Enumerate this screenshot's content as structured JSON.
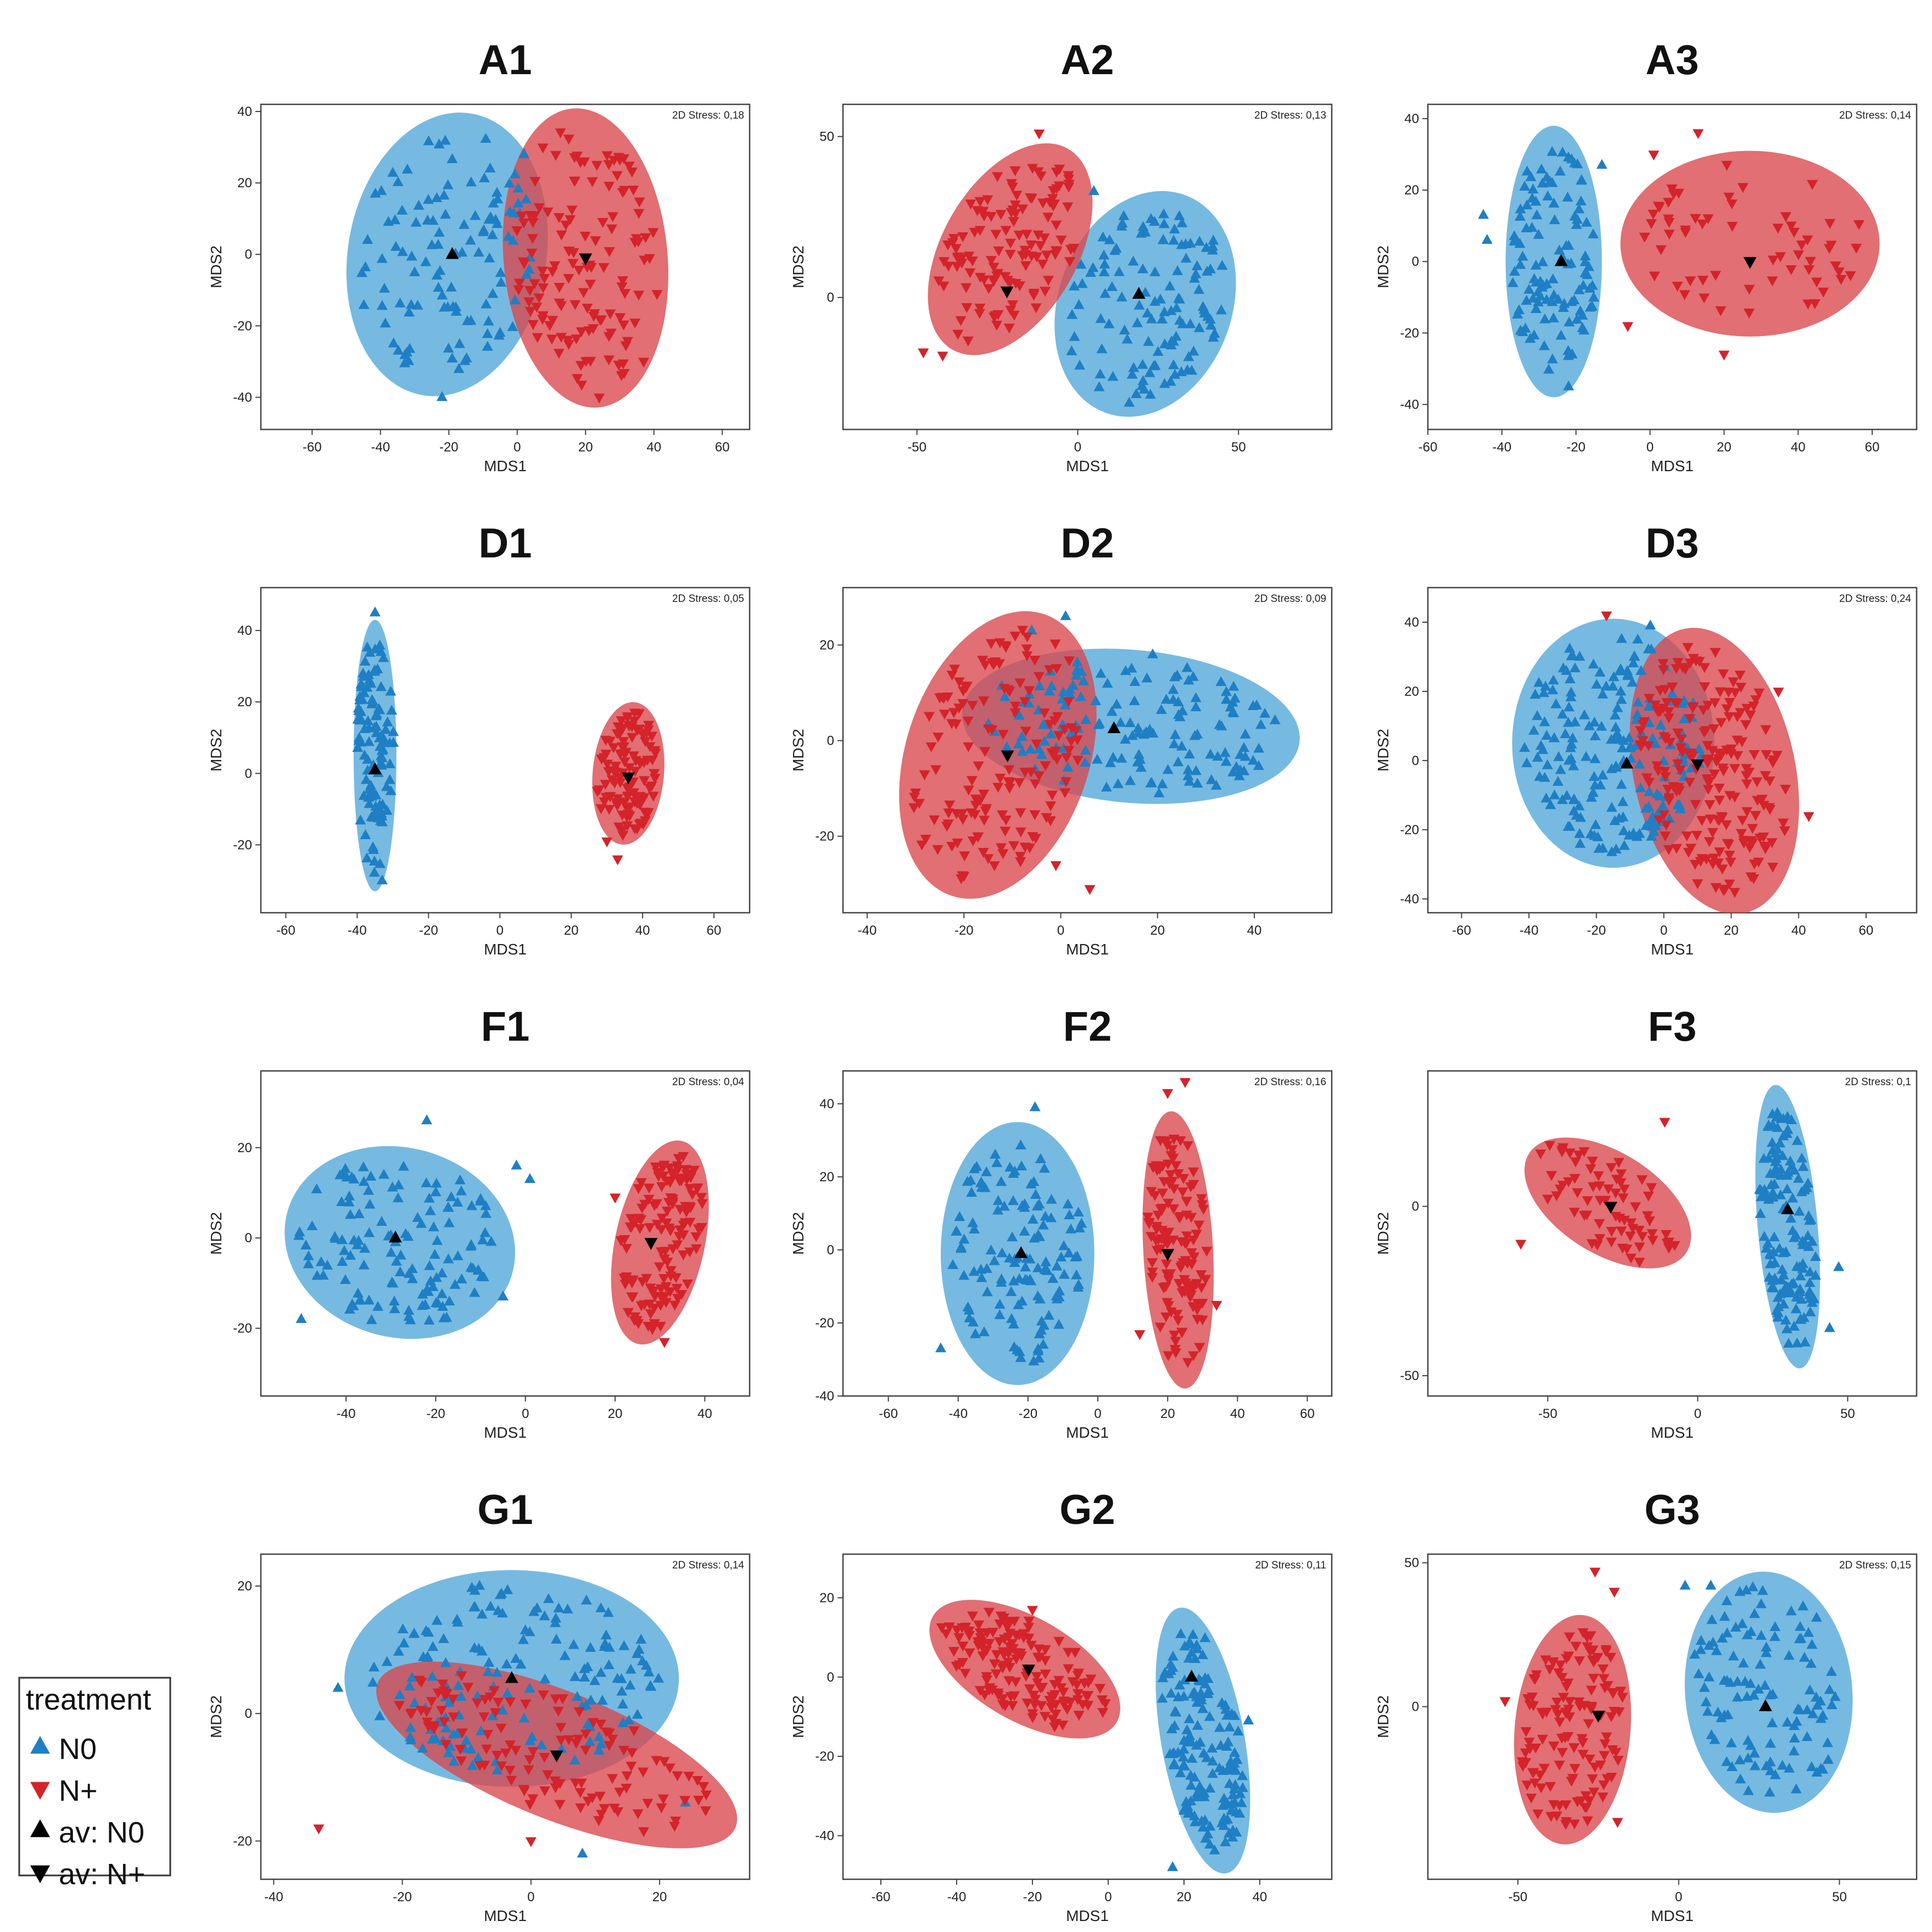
{
  "colors": {
    "n0": "#1f7fc4",
    "n0_fill": "#4fa6d8",
    "nplus": "#d4232a",
    "nplus_fill": "#d9474b",
    "avg": "#000000",
    "frame": "#444444"
  },
  "legend": {
    "title": "treatment",
    "items": [
      {
        "label": "N0",
        "marker": "up",
        "color": "#1f7fc4"
      },
      {
        "label": "N+",
        "marker": "down",
        "color": "#d4232a"
      },
      {
        "label": "av: N0",
        "marker": "up",
        "color": "#000000"
      },
      {
        "label": "av: N+",
        "marker": "down",
        "color": "#000000"
      }
    ]
  },
  "chart_data": [
    {
      "type": "scatter",
      "title": "A1",
      "stress": "2D Stress: 0,18",
      "xlabel": "MDS1",
      "ylabel": "MDS2",
      "xlim": [
        -75,
        68
      ],
      "ylim": [
        -49,
        42
      ],
      "xticks": [
        -60,
        -40,
        -20,
        0,
        20,
        40,
        60
      ],
      "yticks": [
        -40,
        -20,
        0,
        20,
        40
      ],
      "groups": [
        {
          "name": "N0",
          "ellipse": {
            "cx": -20.5,
            "cy": 0,
            "rx": 29,
            "ry": 40,
            "angle": -10
          },
          "avg": [
            -19,
            0
          ],
          "n": 110,
          "outliers": [
            [
              -22,
              -40
            ],
            [
              2,
              28
            ],
            [
              -5,
              -22
            ]
          ]
        },
        {
          "name": "N+",
          "ellipse": {
            "cx": 20,
            "cy": -1,
            "rx": 24,
            "ry": 42,
            "angle": 5
          },
          "avg": [
            20,
            -1
          ],
          "n": 130,
          "outliers": [
            [
              24,
              -40
            ],
            [
              37,
              -30
            ]
          ]
        }
      ]
    },
    {
      "type": "scatter",
      "title": "A2",
      "stress": "2D Stress: 0,13",
      "xlabel": "MDS1",
      "ylabel": "MDS2",
      "xlim": [
        -73,
        79
      ],
      "ylim": [
        -41,
        60
      ],
      "xticks": [
        -50,
        0,
        50
      ],
      "yticks": [
        0,
        50
      ],
      "groups": [
        {
          "name": "N0",
          "ellipse": {
            "cx": 21,
            "cy": -2,
            "rx": 27,
            "ry": 36,
            "angle": -20
          },
          "avg": [
            19,
            1
          ],
          "n": 120,
          "outliers": [
            [
              5,
              33
            ]
          ]
        },
        {
          "name": "N+",
          "ellipse": {
            "cx": -21,
            "cy": 15,
            "rx": 21,
            "ry": 36,
            "angle": -30
          },
          "avg": [
            -22,
            2
          ],
          "n": 120,
          "outliers": [
            [
              -12,
              51
            ],
            [
              -48,
              -17
            ],
            [
              -42,
              -18
            ]
          ]
        }
      ]
    },
    {
      "type": "scatter",
      "title": "A3",
      "stress": "2D Stress: 0,14",
      "xlabel": "MDS1",
      "ylabel": "MDS2",
      "xlim": [
        -60,
        72
      ],
      "ylim": [
        -47,
        44
      ],
      "xticks": [
        -60,
        -40,
        -20,
        0,
        20,
        40,
        60
      ],
      "yticks": [
        -40,
        -20,
        0,
        20,
        40
      ],
      "groups": [
        {
          "name": "N0",
          "ellipse": {
            "cx": -26,
            "cy": 0,
            "rx": 13,
            "ry": 38,
            "angle": 0
          },
          "avg": [
            -24,
            0
          ],
          "n": 110,
          "outliers": [
            [
              -45,
              13
            ],
            [
              -44,
              6
            ],
            [
              -13,
              27
            ],
            [
              -22,
              -35
            ]
          ]
        },
        {
          "name": "N+",
          "ellipse": {
            "cx": 27,
            "cy": 5,
            "rx": 35,
            "ry": 26,
            "angle": 0
          },
          "avg": [
            27,
            0
          ],
          "n": 60,
          "outliers": [
            [
              13,
              36
            ],
            [
              1,
              30
            ],
            [
              20,
              -26
            ],
            [
              -6,
              -18
            ]
          ]
        }
      ]
    },
    {
      "type": "scatter",
      "title": "D1",
      "stress": "2D Stress: 0,05",
      "xlabel": "MDS1",
      "ylabel": "MDS2",
      "xlim": [
        -67,
        70
      ],
      "ylim": [
        -39,
        52
      ],
      "xticks": [
        -60,
        -40,
        -20,
        0,
        20,
        40,
        60
      ],
      "yticks": [
        -20,
        0,
        20,
        40
      ],
      "groups": [
        {
          "name": "N0",
          "ellipse": {
            "cx": -35,
            "cy": 5,
            "rx": 6,
            "ry": 38,
            "angle": 0
          },
          "avg": [
            -35,
            1
          ],
          "n": 110,
          "outliers": [
            [
              -35,
              45
            ],
            [
              -33,
              -30
            ]
          ]
        },
        {
          "name": "N+",
          "ellipse": {
            "cx": 36,
            "cy": 0,
            "rx": 10,
            "ry": 20,
            "angle": -5
          },
          "avg": [
            36,
            -1
          ],
          "n": 110,
          "outliers": [
            [
              30,
              -19
            ],
            [
              33,
              -24
            ]
          ]
        }
      ]
    },
    {
      "type": "scatter",
      "title": "D2",
      "stress": "2D Stress: 0,09",
      "xlabel": "MDS1",
      "ylabel": "MDS2",
      "xlim": [
        -45,
        56
      ],
      "ylim": [
        -36,
        32
      ],
      "xticks": [
        -40,
        -20,
        0,
        20,
        40
      ],
      "yticks": [
        -20,
        0,
        20
      ],
      "groups": [
        {
          "name": "N0",
          "ellipse": {
            "cx": 14.5,
            "cy": 3,
            "rx": 35,
            "ry": 16,
            "angle": -5
          },
          "avg": [
            11,
            2.5
          ],
          "n": 150,
          "outliers": [
            [
              1,
              26
            ],
            [
              -6,
              23
            ],
            [
              19,
              18
            ]
          ]
        },
        {
          "name": "N+",
          "ellipse": {
            "cx": -13,
            "cy": -3,
            "rx": 19,
            "ry": 31,
            "angle": -18
          },
          "avg": [
            -11,
            -3
          ],
          "n": 150,
          "outliers": [
            [
              6,
              -31
            ],
            [
              -1,
              -26
            ]
          ]
        }
      ]
    },
    {
      "type": "scatter",
      "title": "D3",
      "stress": "2D Stress: 0,24",
      "xlabel": "MDS1",
      "ylabel": "MDS2",
      "xlim": [
        -70,
        75
      ],
      "ylim": [
        -44,
        50
      ],
      "xticks": [
        -60,
        -40,
        -20,
        0,
        20,
        40,
        60
      ],
      "yticks": [
        -40,
        -20,
        0,
        20,
        40
      ],
      "groups": [
        {
          "name": "N0",
          "ellipse": {
            "cx": -15,
            "cy": 5,
            "rx": 30,
            "ry": 36,
            "angle": 0
          },
          "avg": [
            -11,
            -1
          ],
          "n": 200,
          "outliers": [
            [
              -4,
              39
            ]
          ]
        },
        {
          "name": "N+",
          "ellipse": {
            "cx": 15,
            "cy": -3,
            "rx": 24,
            "ry": 42,
            "angle": 12
          },
          "avg": [
            10,
            -1
          ],
          "n": 200,
          "outliers": [
            [
              -17,
              42
            ],
            [
              43,
              -16
            ],
            [
              34,
              20
            ]
          ]
        }
      ]
    },
    {
      "type": "scatter",
      "title": "F1",
      "stress": "2D Stress: 0,04",
      "xlabel": "MDS1",
      "ylabel": "MDS2",
      "xlim": [
        -59,
        50
      ],
      "ylim": [
        -35,
        37
      ],
      "xticks": [
        -40,
        -20,
        0,
        20,
        40
      ],
      "yticks": [
        -20,
        0,
        20
      ],
      "groups": [
        {
          "name": "N0",
          "ellipse": {
            "cx": -28,
            "cy": -1,
            "rx": 26,
            "ry": 21,
            "angle": -15
          },
          "avg": [
            -29,
            0
          ],
          "n": 130,
          "outliers": [
            [
              -22,
              26
            ],
            [
              -2,
              16
            ],
            [
              1,
              13
            ],
            [
              -5,
              -13
            ],
            [
              -50,
              -18
            ]
          ]
        },
        {
          "name": "N+",
          "ellipse": {
            "cx": 30,
            "cy": -1,
            "rx": 10,
            "ry": 23,
            "angle": -12
          },
          "avg": [
            28,
            -1
          ],
          "n": 130,
          "outliers": [
            [
              20,
              9
            ],
            [
              31,
              -23
            ]
          ]
        }
      ]
    },
    {
      "type": "scatter",
      "title": "F2",
      "stress": "2D Stress: 0,16",
      "xlabel": "MDS1",
      "ylabel": "MDS2",
      "xlim": [
        -73,
        67
      ],
      "ylim": [
        -40,
        49
      ],
      "xticks": [
        -60,
        -40,
        -20,
        0,
        20,
        40,
        60
      ],
      "yticks": [
        -40,
        -20,
        0,
        20,
        40
      ],
      "groups": [
        {
          "name": "N0",
          "ellipse": {
            "cx": -23,
            "cy": -1,
            "rx": 22,
            "ry": 36,
            "angle": 0
          },
          "avg": [
            -22,
            -1
          ],
          "n": 130,
          "outliers": [
            [
              -18,
              39
            ],
            [
              -45,
              -27
            ]
          ]
        },
        {
          "name": "N+",
          "ellipse": {
            "cx": 23,
            "cy": 0,
            "rx": 10,
            "ry": 38,
            "angle": 3
          },
          "avg": [
            20,
            -1
          ],
          "n": 130,
          "outliers": [
            [
              25,
              46
            ],
            [
              20,
              43
            ],
            [
              12,
              -23
            ],
            [
              34,
              -15
            ]
          ]
        }
      ]
    },
    {
      "type": "scatter",
      "title": "F3",
      "stress": "2D Stress: 0,1",
      "xlabel": "MDS1",
      "ylabel": "MDS2",
      "xlim": [
        -90,
        73
      ],
      "ylim": [
        -56,
        40
      ],
      "xticks": [
        -50,
        0,
        50
      ],
      "yticks": [
        -50,
        0
      ],
      "groups": [
        {
          "name": "N0",
          "ellipse": {
            "cx": 30,
            "cy": -6,
            "rx": 10,
            "ry": 42,
            "angle": 5
          },
          "avg": [
            30,
            -1
          ],
          "n": 140,
          "outliers": [
            [
              47,
              -18
            ],
            [
              44,
              -36
            ]
          ]
        },
        {
          "name": "N+",
          "ellipse": {
            "cx": -30,
            "cy": 1,
            "rx": 31,
            "ry": 15,
            "angle": -32
          },
          "avg": [
            -29,
            0
          ],
          "n": 70,
          "outliers": [
            [
              -11,
              25
            ],
            [
              -59,
              -11
            ]
          ]
        }
      ]
    },
    {
      "type": "scatter",
      "title": "G1",
      "stress": "2D Stress: 0,14",
      "xlabel": "MDS1",
      "ylabel": "MDS2",
      "xlim": [
        -42,
        34
      ],
      "ylim": [
        -26,
        25
      ],
      "xticks": [
        -40,
        -20,
        0,
        20
      ],
      "yticks": [
        -20,
        0,
        20
      ],
      "groups": [
        {
          "name": "N0",
          "ellipse": {
            "cx": -3,
            "cy": 5.5,
            "rx": 26,
            "ry": 17,
            "angle": 0
          },
          "avg": [
            -3,
            5.5
          ],
          "n": 150,
          "outliers": [
            [
              -8,
              20
            ],
            [
              24,
              -14
            ],
            [
              8,
              -22
            ],
            [
              -30,
              4
            ]
          ]
        },
        {
          "name": "N+",
          "ellipse": {
            "cx": 4,
            "cy": -6.5,
            "rx": 30,
            "ry": 10,
            "angle": -22
          },
          "avg": [
            4,
            -6.5
          ],
          "n": 120,
          "outliers": [
            [
              -33,
              -18
            ],
            [
              0,
              -20
            ]
          ]
        }
      ]
    },
    {
      "type": "scatter",
      "title": "G2",
      "stress": "2D Stress: 0,11",
      "xlabel": "MDS1",
      "ylabel": "MDS2",
      "xlim": [
        -70,
        59
      ],
      "ylim": [
        -51,
        31
      ],
      "xticks": [
        -60,
        -40,
        -20,
        0,
        20,
        40
      ],
      "yticks": [
        -40,
        -20,
        0,
        20
      ],
      "groups": [
        {
          "name": "N0",
          "ellipse": {
            "cx": 25,
            "cy": -16,
            "rx": 11,
            "ry": 34,
            "angle": 10
          },
          "avg": [
            22,
            0
          ],
          "n": 150,
          "outliers": [
            [
              17,
              -48
            ],
            [
              37,
              -11
            ],
            [
              32,
              -27
            ]
          ]
        },
        {
          "name": "N+",
          "ellipse": {
            "cx": -22,
            "cy": 2,
            "rx": 28,
            "ry": 13,
            "angle": -30
          },
          "avg": [
            -21,
            2
          ],
          "n": 150,
          "outliers": [
            [
              -20,
              17
            ]
          ]
        }
      ]
    },
    {
      "type": "scatter",
      "title": "G3",
      "stress": "2D Stress: 0,15",
      "xlabel": "MDS1",
      "ylabel": "MDS2",
      "xlim": [
        -78,
        74
      ],
      "ylim": [
        -60,
        53
      ],
      "xticks": [
        -50,
        0,
        50
      ],
      "yticks": [
        0,
        50
      ],
      "groups": [
        {
          "name": "N0",
          "ellipse": {
            "cx": 28,
            "cy": 5,
            "rx": 26,
            "ry": 42,
            "angle": 5
          },
          "avg": [
            27,
            0
          ],
          "n": 110,
          "outliers": [
            [
              2,
              42
            ],
            [
              10,
              42
            ],
            [
              5,
              18
            ]
          ]
        },
        {
          "name": "N+",
          "ellipse": {
            "cx": -33,
            "cy": -8,
            "rx": 18,
            "ry": 40,
            "angle": -5
          },
          "avg": [
            -25,
            -3
          ],
          "n": 130,
          "outliers": [
            [
              -26,
              47
            ],
            [
              -54,
              2
            ],
            [
              -20,
              40
            ],
            [
              -19,
              -40
            ]
          ]
        }
      ]
    }
  ]
}
